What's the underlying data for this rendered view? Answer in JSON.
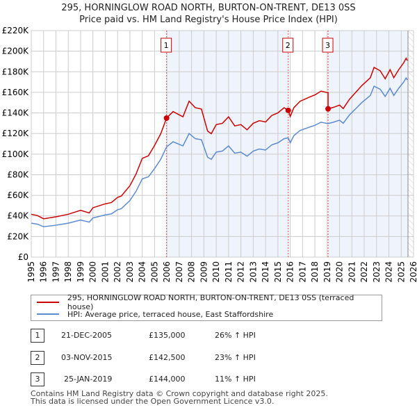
{
  "chart_data": {
    "type": "line",
    "title": "295, HORNINGLOW ROAD NORTH, BURTON-ON-TRENT, DE13 0SS",
    "subtitle": "Price paid vs. HM Land Registry's House Price Index (HPI)",
    "xlim": [
      1995,
      2026
    ],
    "ylim": [
      0,
      220000
    ],
    "y_ticks": [
      0,
      20000,
      40000,
      60000,
      80000,
      100000,
      120000,
      140000,
      160000,
      180000,
      200000,
      220000
    ],
    "y_tick_labels": [
      "£0",
      "£20K",
      "£40K",
      "£60K",
      "£80K",
      "£100K",
      "£120K",
      "£140K",
      "£160K",
      "£180K",
      "£200K",
      "£220K"
    ],
    "x_tick_labels": [
      "1995",
      "1996",
      "1997",
      "1998",
      "1999",
      "2000",
      "2001",
      "2002",
      "2003",
      "2004",
      "2005",
      "2006",
      "2007",
      "2008",
      "2009",
      "2010",
      "2011",
      "2012",
      "2013",
      "2014",
      "2015",
      "2016",
      "2017",
      "2018",
      "2019",
      "2020",
      "2021",
      "2022",
      "2023",
      "2024",
      "2025",
      "2026"
    ],
    "grid": true,
    "series": [
      {
        "name": "HPI: Average price, terraced house, East Staffordshire",
        "color": "#5b8bd0",
        "x": [
          1995,
          1995.5,
          1996,
          1997,
          1997.5,
          1998,
          1999,
          1999.7,
          2000,
          2001,
          2001.5,
          2002,
          2002.3,
          2003,
          2003.5,
          2004,
          2004.5,
          2005,
          2005.5,
          2005.97,
          2006.5,
          2007.3,
          2007.8,
          2008.3,
          2008.8,
          2009.3,
          2009.6,
          2010,
          2010.5,
          2011,
          2011.5,
          2012,
          2012.5,
          2013,
          2013.5,
          2014,
          2014.5,
          2015,
          2015.5,
          2015.84,
          2016,
          2016.3,
          2016.8,
          2017.5,
          2018,
          2018.5,
          2019.06,
          2019.5,
          2020,
          2020.3,
          2020.8,
          2021.3,
          2021.8,
          2022.5,
          2022.8,
          2023.3,
          2023.7,
          2024.1,
          2024.4,
          2024.8,
          2025.2,
          2025.4,
          2025.5
        ],
        "y": [
          33000,
          32000,
          29500,
          31000,
          32000,
          33000,
          36000,
          34000,
          38000,
          41000,
          42000,
          46000,
          47000,
          55000,
          64000,
          76000,
          78000,
          86000,
          95000,
          107000,
          112000,
          108000,
          120000,
          115000,
          114000,
          97000,
          95000,
          102000,
          103000,
          108000,
          101000,
          102000,
          98000,
          103000,
          105000,
          104000,
          109000,
          111000,
          115000,
          115800,
          111000,
          118000,
          123000,
          126000,
          128000,
          131000,
          129700,
          131000,
          133000,
          130000,
          138000,
          144000,
          150000,
          157000,
          166000,
          163000,
          156000,
          164000,
          157000,
          164000,
          170000,
          174000,
          172000
        ]
      },
      {
        "name": "295, HORNINGLOW ROAD NORTH, BURTON-ON-TRENT, DE13 0SS (terraced house)",
        "color": "#cc0000"
      }
    ],
    "sales": [
      {
        "label": "1",
        "x": 2005.97,
        "price": 135000
      },
      {
        "label": "2",
        "x": 2015.84,
        "price": 142500
      },
      {
        "label": "3",
        "x": 2019.07,
        "price": 144000
      }
    ],
    "data_end": 2025.55
  },
  "legend": [
    {
      "label": "295, HORNINGLOW ROAD NORTH, BURTON-ON-TRENT, DE13 0SS (terraced house)",
      "color": "#cc0000"
    },
    {
      "label": "HPI: Average price, terraced house, East Staffordshire",
      "color": "#5b8bd0"
    }
  ],
  "table": [
    {
      "num": "1",
      "date": "21-DEC-2005",
      "price": "£135,000",
      "hpi": "26% ↑ HPI"
    },
    {
      "num": "2",
      "date": "03-NOV-2015",
      "price": "£142,500",
      "hpi": "23% ↑ HPI"
    },
    {
      "num": "3",
      "date": "25-JAN-2019",
      "price": "£144,000",
      "hpi": "11% ↑ HPI"
    }
  ],
  "footer": [
    "Contains HM Land Registry data © Crown copyright and database right 2025.",
    "This data is licensed under the Open Government Licence v3.0."
  ]
}
